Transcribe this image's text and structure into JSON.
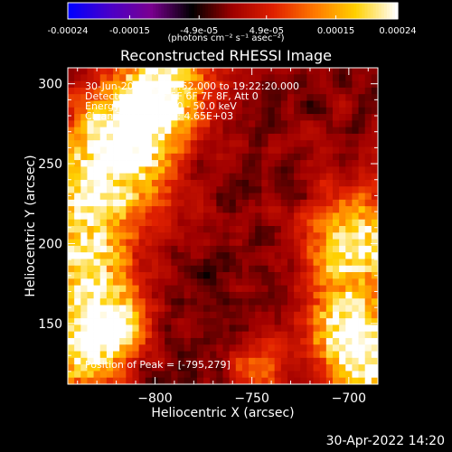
{
  "colorbar": {
    "ticks": [
      "-0.00024",
      "-0.00015",
      "-4.9e-05",
      "4.9e-05",
      "0.00015",
      "0.00024"
    ],
    "tick_values": [
      -0.00024,
      -0.00015,
      -4.9e-05,
      4.9e-05,
      0.00015,
      0.00024
    ],
    "range": [
      -0.00024,
      0.00024
    ],
    "units": "(photons cm⁻² s⁻¹ asec⁻²)"
  },
  "plot": {
    "title": "Reconstructed RHESSI Image",
    "xlabel": "Heliocentric X (arcsec)",
    "ylabel": "Heliocentric Y (arcsec)"
  },
  "info": {
    "time_range": "30-Jun-2005 19:17:52.000 to 19:22:20.000",
    "detectors": "Detectors: 3F 4F 5F 6F 7F 8F, Att 0",
    "energy": "Energy Range: 25.0 - 50.0 keV",
    "method": "Clean     Total Counts: 4.65E+03",
    "peak": "Position of Peak = [-795,279]"
  },
  "footer": {
    "date": "30-Apr-2022 14:20"
  },
  "colors": {
    "background": "#000000",
    "colormap": [
      "#0000ff",
      "#4a00c8",
      "#7a0090",
      "#000000",
      "#a00000",
      "#e02000",
      "#ff7800",
      "#ffd000",
      "#ffffff"
    ]
  },
  "chart_data": {
    "type": "heatmap",
    "title": "Reconstructed RHESSI Image",
    "xlabel": "Heliocentric X (arcsec)",
    "ylabel": "Heliocentric Y (arcsec)",
    "xlim": [
      -845,
      -685
    ],
    "ylim": [
      112,
      310
    ],
    "xticks": [
      -800,
      -750,
      -700
    ],
    "yticks": [
      150,
      200,
      250,
      300
    ],
    "zlim": [
      -0.00024,
      0.00024
    ],
    "peak": [
      -795,
      279
    ],
    "grid": false
  }
}
